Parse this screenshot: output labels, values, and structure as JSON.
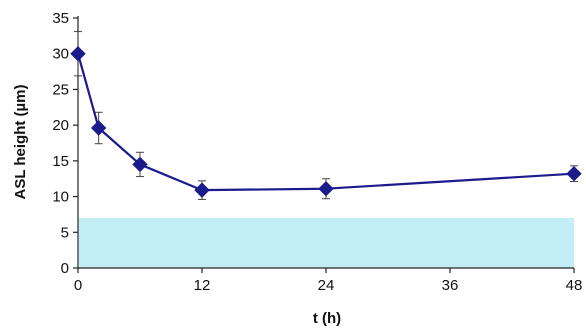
{
  "chart_data": {
    "type": "line",
    "title": "",
    "xlabel": "t (h)",
    "ylabel": "ASL height (µm)",
    "xlim": [
      0,
      48
    ],
    "ylim": [
      0,
      35
    ],
    "xticks": [
      0,
      12,
      24,
      36,
      48
    ],
    "yticks": [
      0,
      5,
      10,
      15,
      20,
      25,
      30,
      35
    ],
    "grid": false,
    "legend": "none",
    "series": [
      {
        "x": [
          0,
          2,
          6,
          12,
          24,
          48
        ],
        "y": [
          30,
          19.6,
          14.5,
          10.9,
          11.1,
          13.2
        ],
        "error": [
          3.1,
          2.2,
          1.7,
          1.3,
          1.4,
          1.1
        ],
        "color": "#1b1b8c",
        "marker": "diamond"
      }
    ],
    "shaded_band": {
      "y_from": 0,
      "y_to": 7,
      "color": "#c4eef6"
    }
  }
}
